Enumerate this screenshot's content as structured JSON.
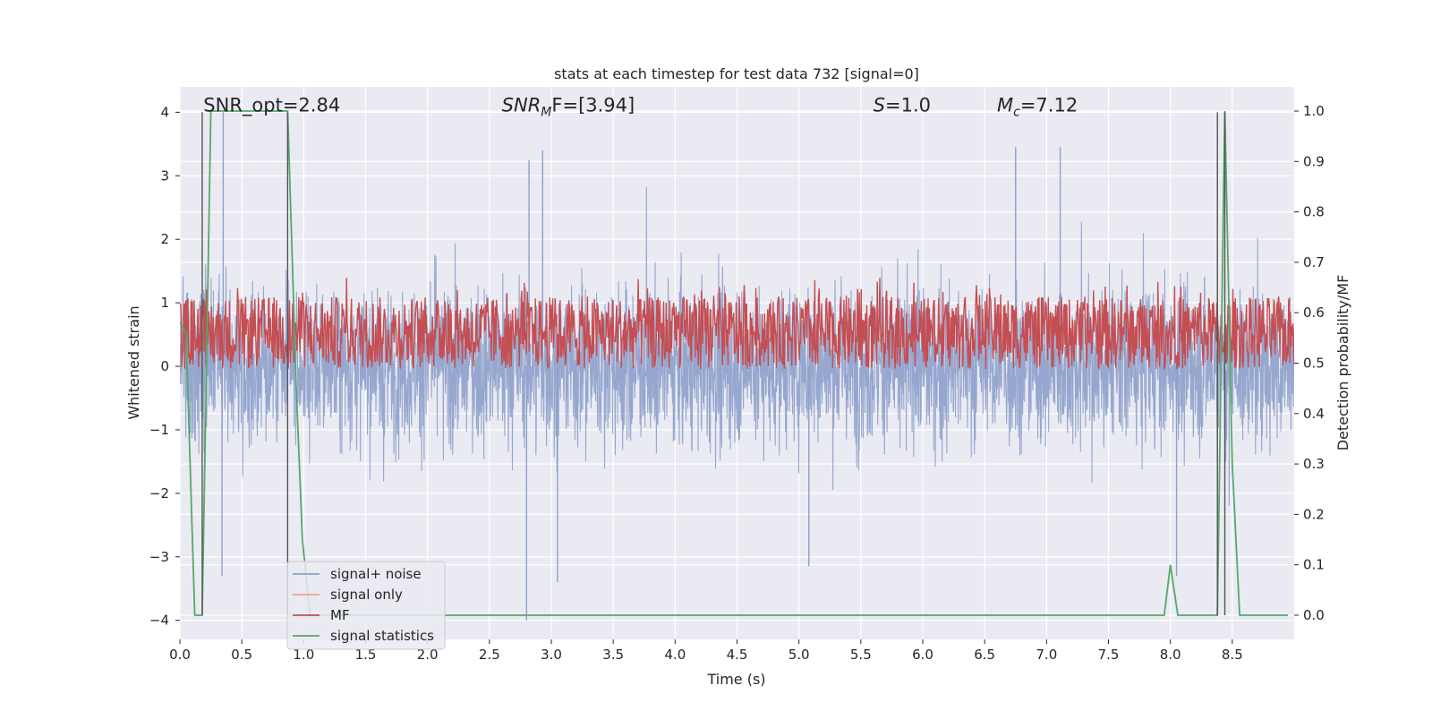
{
  "chart_data": {
    "type": "line",
    "title": "stats at each timestep for test data 732 [signal=0]",
    "xlabel": "Time (s)",
    "ylabel_left": "Whitened strain",
    "ylabel_right": "Detection probability/MF",
    "xlim": [
      0.0,
      9.0
    ],
    "ylim_left": [
      -4.3,
      4.4
    ],
    "ylim_right": [
      -0.048,
      1.048
    ],
    "x_ticks": [
      0.0,
      0.5,
      1.0,
      1.5,
      2.0,
      2.5,
      3.0,
      3.5,
      4.0,
      4.5,
      5.0,
      5.5,
      6.0,
      6.5,
      7.0,
      7.5,
      8.0,
      8.5
    ],
    "x_tick_labels": [
      "0.0",
      "0.5",
      "1.0",
      "1.5",
      "2.0",
      "2.5",
      "3.0",
      "3.5",
      "4.0",
      "4.5",
      "5.0",
      "5.5",
      "6.0",
      "6.5",
      "7.0",
      "7.5",
      "8.0",
      "8.5"
    ],
    "y_ticks_left": [
      -4,
      -3,
      -2,
      -1,
      0,
      1,
      2,
      3,
      4
    ],
    "y_tick_labels_left": [
      "−4",
      "−3",
      "−2",
      "−1",
      "0",
      "1",
      "2",
      "3",
      "4"
    ],
    "y_ticks_right": [
      0.0,
      0.1,
      0.2,
      0.3,
      0.4,
      0.5,
      0.6,
      0.7,
      0.8,
      0.9,
      1.0
    ],
    "y_tick_labels_right": [
      "0.0",
      "0.1",
      "0.2",
      "0.3",
      "0.4",
      "0.5",
      "0.6",
      "0.7",
      "0.8",
      "0.9",
      "1.0"
    ],
    "grid": true,
    "annotations": [
      {
        "text": "SNR_opt=2.84",
        "x": 0.19,
        "y": 4.1
      },
      {
        "text": "SNR",
        "sub": "M",
        "tail": "F=[3.94]",
        "x": 2.6,
        "y": 4.1
      },
      {
        "text": "S",
        "tail": "=1.0",
        "x": 5.6,
        "y": 4.1
      },
      {
        "text": "M",
        "sub": "c",
        "tail": "=7.12",
        "x": 6.6,
        "y": 4.1
      }
    ],
    "vertical_markers": [
      0.18,
      0.87,
      8.38,
      8.44
    ],
    "series": [
      {
        "name": "signal+ noise",
        "axis": "left",
        "color": "#8da0cb",
        "kind": "noise",
        "envelope": {
          "typical": 1.4,
          "peak": 3.5
        },
        "notable_peaks": [
          {
            "x": 0.35,
            "y": 4.0
          },
          {
            "x": 2.82,
            "y": 3.25
          },
          {
            "x": 2.93,
            "y": 3.4
          },
          {
            "x": 6.75,
            "y": 3.45
          },
          {
            "x": 7.11,
            "y": 3.45
          }
        ],
        "notable_troughs": [
          {
            "x": 0.34,
            "y": -3.3
          },
          {
            "x": 2.8,
            "y": -4.0
          },
          {
            "x": 3.05,
            "y": -3.4
          },
          {
            "x": 5.08,
            "y": -3.15
          },
          {
            "x": 8.05,
            "y": -3.3
          }
        ]
      },
      {
        "name": "signal only",
        "axis": "left",
        "color": "#e8a686",
        "values": []
      },
      {
        "name": "MF",
        "axis": "right",
        "color": "#c44e52",
        "kind": "band",
        "band": [
          0.5,
          0.62
        ],
        "peak": 0.67
      },
      {
        "name": "signal statistics",
        "axis": "right",
        "color": "#55a868",
        "x": [
          0.0,
          0.05,
          0.12,
          0.18,
          0.25,
          0.3,
          0.87,
          0.94,
          0.99,
          1.05,
          7.95,
          8.0,
          8.06,
          8.38,
          8.44,
          8.5,
          8.56,
          8.95
        ],
        "values": [
          0.58,
          0.56,
          0.0,
          0.0,
          1.0,
          1.0,
          1.0,
          0.45,
          0.15,
          0.0,
          0.0,
          0.1,
          0.0,
          0.0,
          1.0,
          0.3,
          0.0,
          0.0
        ]
      }
    ],
    "legend": {
      "placement": "lower-left",
      "entries": [
        "signal+ noise",
        "signal only",
        "MF",
        "signal statistics"
      ]
    }
  }
}
